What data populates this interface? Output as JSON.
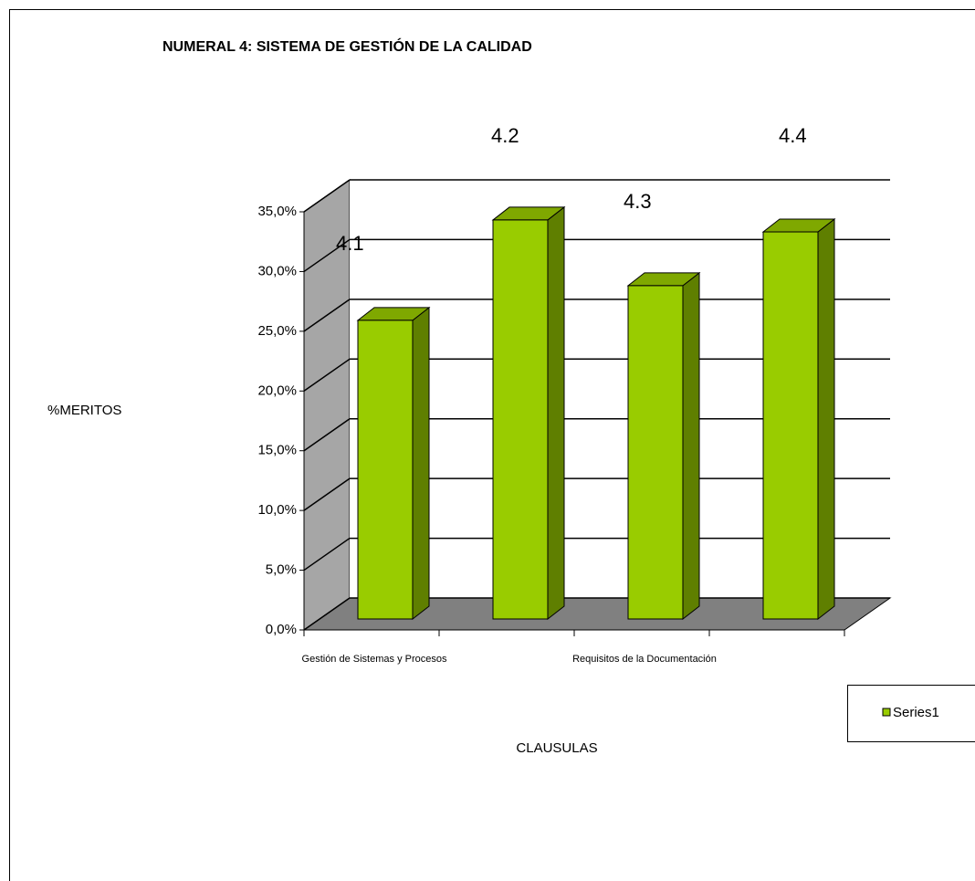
{
  "chart_data": {
    "type": "bar3d",
    "title": "NUMERAL 4: SISTEMA DE GESTIÓN DE LA CALIDAD",
    "y_label": "%MERITOS",
    "x_label": "CLAUSULAS",
    "categories": [
      "Gestión de Sistemas y Procesos",
      null,
      "Requisitos de la Documentación",
      null
    ],
    "annotations": [
      "4.1",
      "4.2",
      "4.3",
      "4.4"
    ],
    "series": [
      {
        "name": "Series1",
        "color": "#99cc00",
        "values": [
          25.0,
          33.4,
          27.9,
          32.4
        ]
      }
    ],
    "ylim": [
      0,
      35
    ],
    "yticks": [
      {
        "value": 0,
        "label": "0,0%"
      },
      {
        "value": 5,
        "label": "5,0%"
      },
      {
        "value": 10,
        "label": "10,0%"
      },
      {
        "value": 15,
        "label": "15,0%"
      },
      {
        "value": 20,
        "label": "20,0%"
      },
      {
        "value": 25,
        "label": "25,0%"
      },
      {
        "value": 30,
        "label": "30,0%"
      },
      {
        "value": 35,
        "label": "35,0%"
      }
    ],
    "grid": true,
    "legend": "right"
  }
}
